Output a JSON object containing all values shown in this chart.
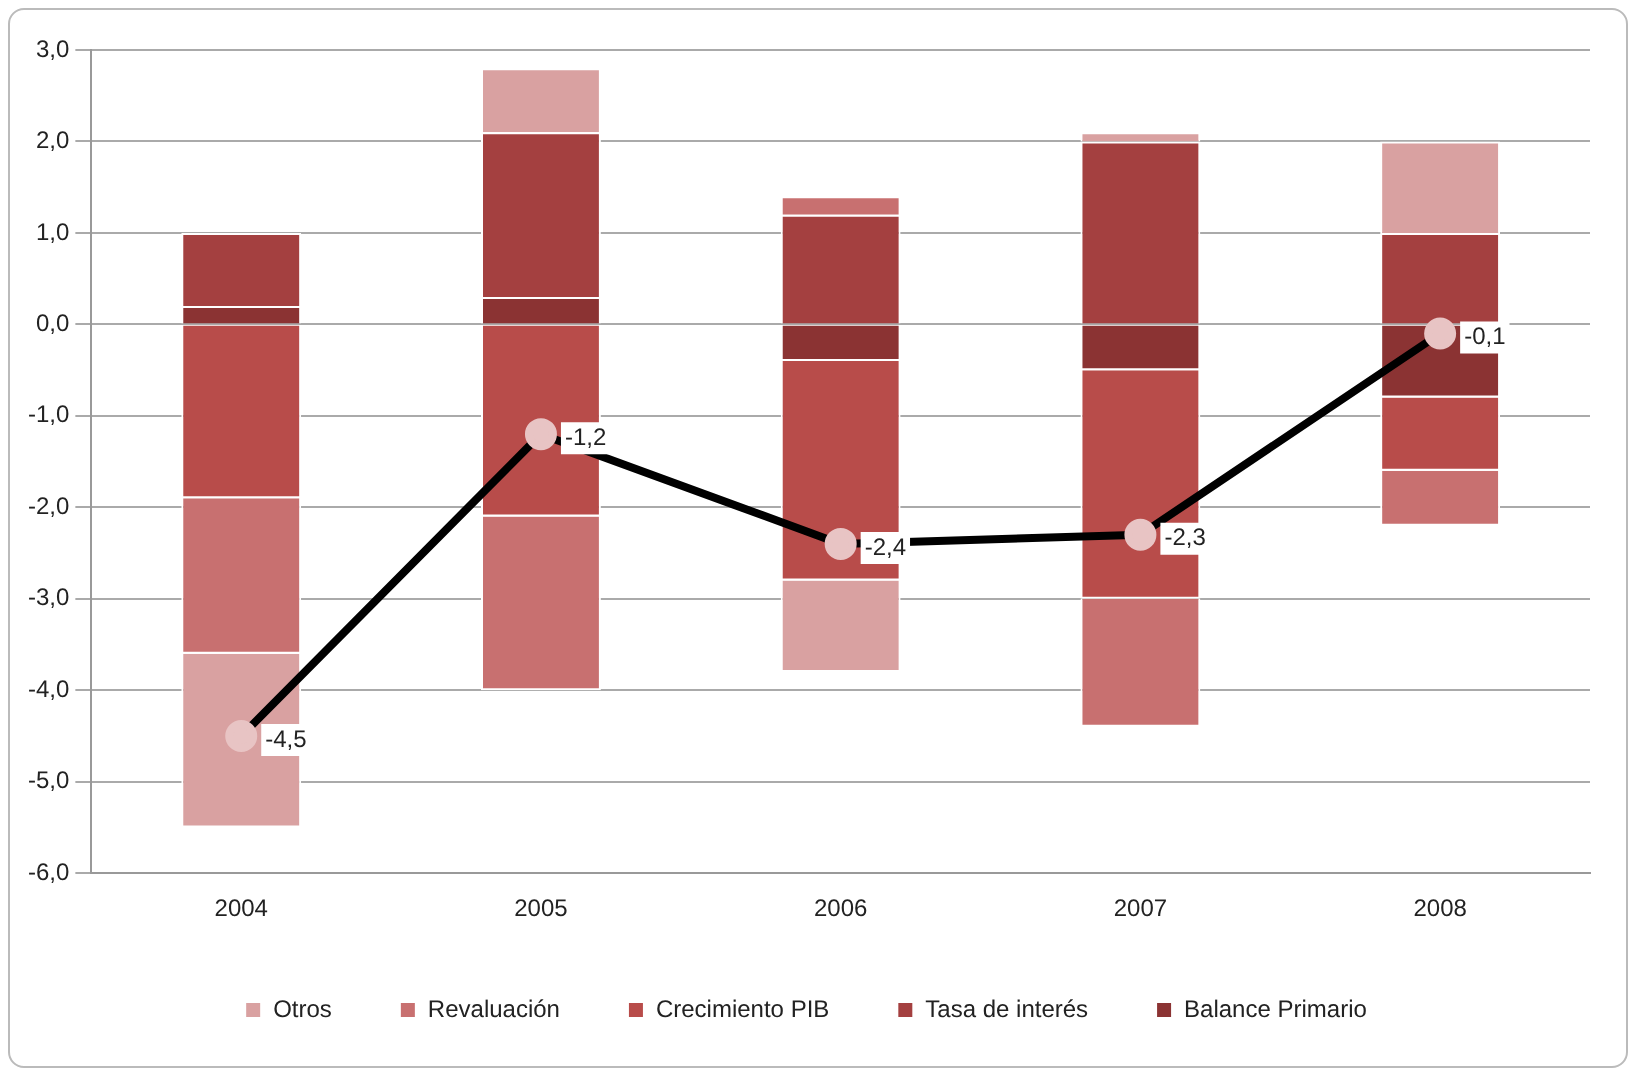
{
  "chart_data": {
    "type": "bar",
    "stacked": true,
    "categories": [
      "2004",
      "2005",
      "2006",
      "2007",
      "2008"
    ],
    "series": [
      {
        "name": "Balance Primario",
        "color": "#8b3333",
        "values": [
          0.2,
          0.3,
          -0.4,
          -0.5,
          -0.8
        ]
      },
      {
        "name": "Tasa de interés",
        "color": "#a44040",
        "values": [
          0.8,
          1.8,
          1.2,
          2.0,
          1.0
        ]
      },
      {
        "name": "Crecimiento PIB",
        "color": "#b84c4a",
        "values": [
          -1.9,
          -2.1,
          -2.4,
          -2.5,
          -0.8
        ]
      },
      {
        "name": "Revaluación",
        "color": "#c87070",
        "values": [
          -1.7,
          -1.9,
          0.2,
          -1.4,
          -0.6
        ]
      },
      {
        "name": "Otros",
        "color": "#d9a1a1",
        "values": [
          -1.9,
          0.7,
          -1.0,
          0.1,
          1.0
        ]
      },
      {
        "type": "line",
        "color": "#000000",
        "values": [
          -4.5,
          -1.2,
          -2.4,
          -2.3,
          -0.1
        ],
        "value_labels": [
          "-4,5",
          "-1,2",
          "-2,4",
          "-2,3",
          "-0,1"
        ]
      }
    ],
    "ylim": [
      -6,
      3
    ],
    "yticks": [
      {
        "value": -6,
        "label": "-6,0"
      },
      {
        "value": -5,
        "label": "-5,0"
      },
      {
        "value": -4,
        "label": "-4,0"
      },
      {
        "value": -3,
        "label": "-3,0"
      },
      {
        "value": -2,
        "label": "-2,0"
      },
      {
        "value": -1,
        "label": "-1,0"
      },
      {
        "value": 0,
        "label": "0,0"
      },
      {
        "value": 1,
        "label": "1,0"
      },
      {
        "value": 2,
        "label": "2,0"
      },
      {
        "value": 3,
        "label": "3,0"
      }
    ],
    "grid": "y",
    "legend": "bottom",
    "marker": "circle"
  }
}
